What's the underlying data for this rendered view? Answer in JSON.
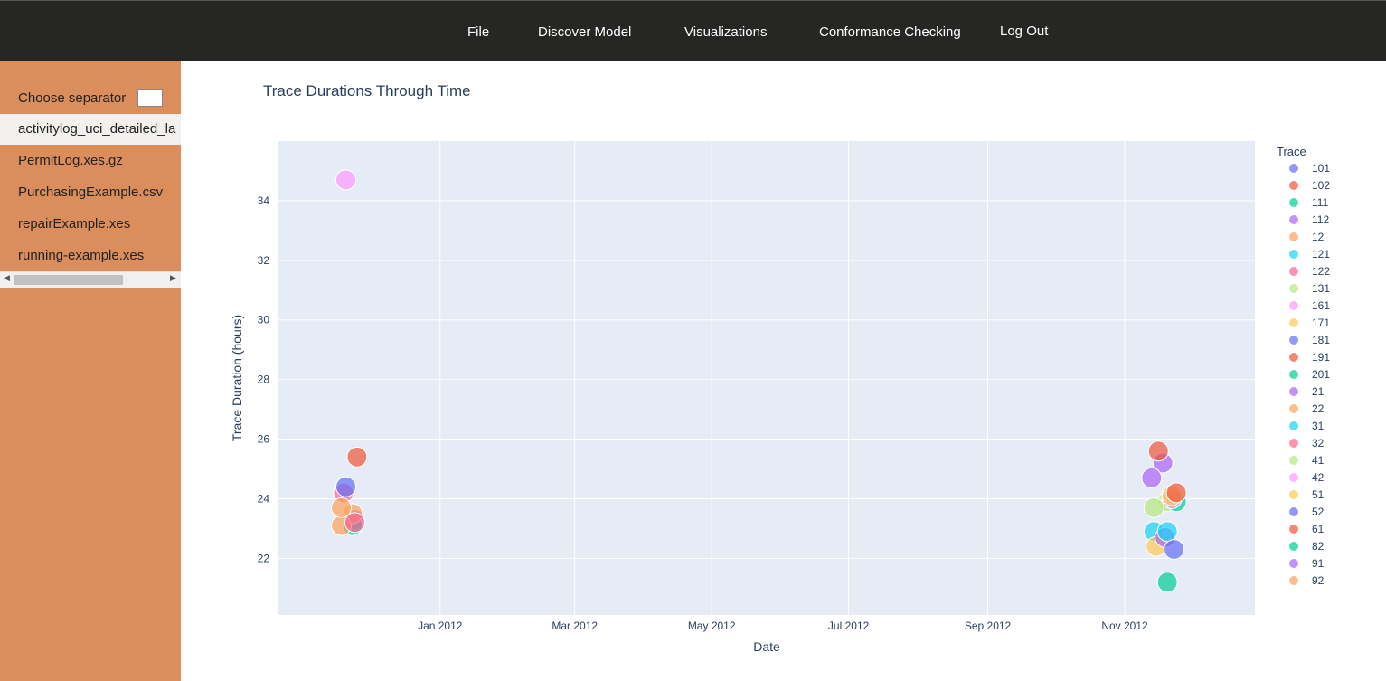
{
  "nav": {
    "items": [
      "File",
      "Discover Model",
      "Visualizations",
      "Conformance Checking",
      "Log Out"
    ]
  },
  "sidebar": {
    "separator_label": "Choose separator",
    "separator_value": "",
    "files": [
      "activitylog_uci_detailed_la",
      "PermitLog.xes.gz",
      "PurchasingExample.csv",
      "repairExample.xes",
      "running-example.xes"
    ],
    "active_file_index": 0
  },
  "colors": {
    "nav_bg": "#262725",
    "sidebar_bg": "#db8e5c",
    "plot_bg": "#e5ecf6"
  },
  "chart_data": {
    "type": "scatter",
    "title": "Trace Durations Through Time",
    "xlabel": "Date",
    "ylabel": "Trace Duration (hours)",
    "x_ticks": [
      "2012-01-01",
      "2012-03-01",
      "2012-05-01",
      "2012-07-01",
      "2012-09-01",
      "2012-11-01"
    ],
    "x_tick_labels": [
      "Jan 2012",
      "Mar 2012",
      "May 2012",
      "Jul 2012",
      "Sep 2012",
      "Nov 2012"
    ],
    "xlim": [
      "2011-10-21",
      "2012-12-29"
    ],
    "y_ticks": [
      22,
      24,
      26,
      28,
      30,
      32,
      34
    ],
    "ylim": [
      20.1,
      36.0
    ],
    "grid": true,
    "legend_title": "Trace",
    "legend_position": "right",
    "series": [
      {
        "name": "101",
        "color": "#636efa",
        "points": [
          {
            "x": "2011-11-24",
            "y": 23.3
          }
        ]
      },
      {
        "name": "102",
        "color": "#ef553b",
        "points": [
          {
            "x": "2011-11-25",
            "y": 25.4
          }
        ]
      },
      {
        "name": "111",
        "color": "#00cc96",
        "points": [
          {
            "x": "2011-11-23",
            "y": 23.1
          }
        ]
      },
      {
        "name": "112",
        "color": "#ab63fa",
        "points": [
          {
            "x": "2012-11-18",
            "y": 25.2
          }
        ]
      },
      {
        "name": "12",
        "color": "#ffa15a",
        "points": [
          {
            "x": "2011-11-23",
            "y": 23.5
          }
        ]
      },
      {
        "name": "121",
        "color": "#19d3f3",
        "points": [
          {
            "x": "2012-11-14",
            "y": 22.9
          }
        ]
      },
      {
        "name": "122",
        "color": "#ff6692",
        "points": [
          {
            "x": "2011-11-19",
            "y": 24.2
          }
        ]
      },
      {
        "name": "131",
        "color": "#b6e880",
        "points": [
          {
            "x": "2012-11-20",
            "y": 23.9
          }
        ]
      },
      {
        "name": "161",
        "color": "#ff97ff",
        "points": [
          {
            "x": "2011-11-20",
            "y": 34.7
          }
        ]
      },
      {
        "name": "171",
        "color": "#fecb52",
        "points": [
          {
            "x": "2012-11-15",
            "y": 22.4
          }
        ]
      },
      {
        "name": "181",
        "color": "#636efa",
        "points": [
          {
            "x": "2011-11-20",
            "y": 24.4
          }
        ]
      },
      {
        "name": "191",
        "color": "#ef553b",
        "points": [
          {
            "x": "2012-11-16",
            "y": 25.6
          }
        ]
      },
      {
        "name": "201",
        "color": "#00cc96",
        "points": [
          {
            "x": "2012-11-24",
            "y": 23.9
          }
        ]
      },
      {
        "name": "21",
        "color": "#ab63fa",
        "points": [
          {
            "x": "2012-11-19",
            "y": 22.7
          }
        ]
      },
      {
        "name": "22",
        "color": "#ffa15a",
        "points": [
          {
            "x": "2011-11-18",
            "y": 23.1
          }
        ]
      },
      {
        "name": "31",
        "color": "#19d3f3",
        "points": [
          {
            "x": "2012-11-20",
            "y": 22.9
          }
        ]
      },
      {
        "name": "32",
        "color": "#ff6692",
        "points": [
          {
            "x": "2011-11-24",
            "y": 23.2
          }
        ]
      },
      {
        "name": "41",
        "color": "#b6e880",
        "points": [
          {
            "x": "2012-11-14",
            "y": 23.7
          }
        ]
      },
      {
        "name": "42",
        "color": "#ff97ff",
        "points": [
          {
            "x": "2012-11-22",
            "y": 24.0
          }
        ]
      },
      {
        "name": "51",
        "color": "#fecb52",
        "points": [
          {
            "x": "2012-11-22",
            "y": 24.1
          }
        ]
      },
      {
        "name": "52",
        "color": "#636efa",
        "points": [
          {
            "x": "2012-11-23",
            "y": 22.3
          }
        ]
      },
      {
        "name": "61",
        "color": "#ef553b",
        "points": [
          {
            "x": "2012-11-24",
            "y": 24.2
          }
        ]
      },
      {
        "name": "82",
        "color": "#00cc96",
        "points": [
          {
            "x": "2012-11-20",
            "y": 21.2
          }
        ]
      },
      {
        "name": "91",
        "color": "#ab63fa",
        "points": [
          {
            "x": "2012-11-13",
            "y": 24.7
          }
        ]
      },
      {
        "name": "92",
        "color": "#ffa15a",
        "points": [
          {
            "x": "2011-11-18",
            "y": 23.7
          }
        ]
      }
    ]
  }
}
